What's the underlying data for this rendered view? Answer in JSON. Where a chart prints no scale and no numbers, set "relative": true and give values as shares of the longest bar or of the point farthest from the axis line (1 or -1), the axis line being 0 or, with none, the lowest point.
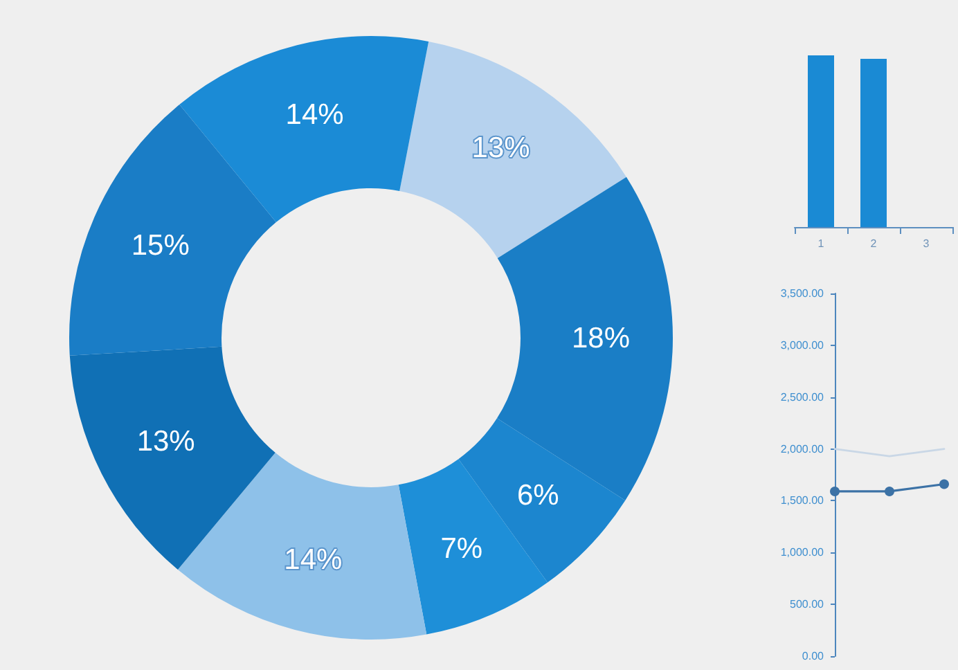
{
  "chart_data": [
    {
      "type": "donut",
      "categories": [
        null,
        null,
        null,
        null,
        null,
        null,
        null,
        null
      ],
      "values": [
        13,
        18,
        6,
        7,
        14,
        13,
        15,
        14
      ],
      "colors": [
        "#b6d2ee",
        "#1a7ec6",
        "#1c86cf",
        "#1e8fd8",
        "#8ec1e9",
        "#1070b5",
        "#1a7dc6",
        "#1b8bd6"
      ],
      "value_labels": [
        "13%",
        "18%",
        "6%",
        "7%",
        "14%",
        "13%",
        "15%",
        "14%"
      ]
    },
    {
      "type": "bar",
      "categories": [
        "1",
        "2",
        "3"
      ],
      "values": [
        1,
        0.98,
        null
      ],
      "color": "#1a8ad4",
      "relative": true
    },
    {
      "type": "line",
      "categories": [
        null,
        null,
        null
      ],
      "series": [
        {
          "color": "#c9d7e6",
          "values": [
            2000,
            1930,
            2000
          ],
          "marker": "none"
        },
        {
          "color": "#3c72a6",
          "values": [
            1590,
            1590,
            1660
          ],
          "marker": "circle"
        }
      ],
      "ylim": [
        0,
        3500
      ],
      "yticks": [
        {
          "value": 0,
          "label": "0.00"
        },
        {
          "value": 500,
          "label": "500.00"
        },
        {
          "value": 1000,
          "label": "1,000.00"
        },
        {
          "value": 1500,
          "label": "1,500.00"
        },
        {
          "value": 2000,
          "label": "2,000.00"
        },
        {
          "value": 2500,
          "label": "2,500.00"
        },
        {
          "value": 3000,
          "label": "3,000.00"
        },
        {
          "value": 3500,
          "label": "3,500.00"
        }
      ]
    }
  ]
}
